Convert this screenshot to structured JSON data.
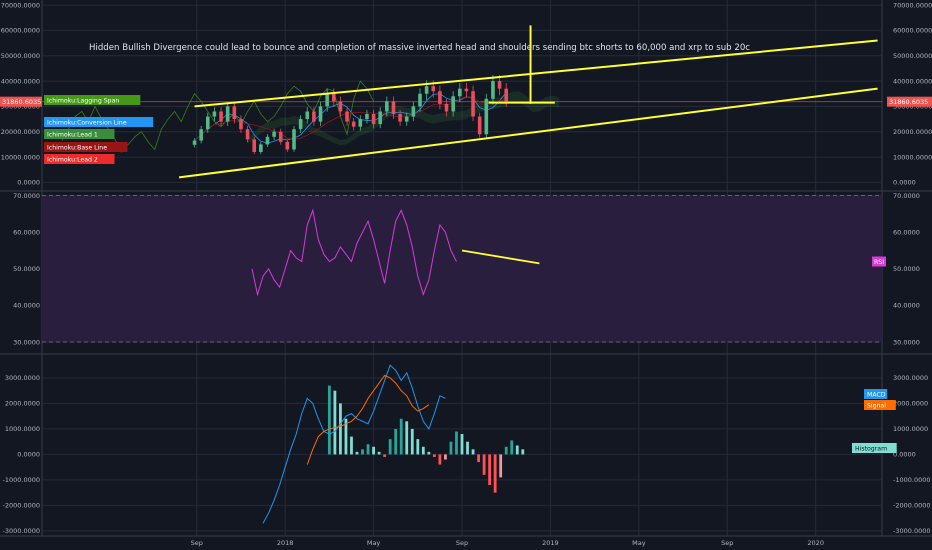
{
  "annotation": "Hidden Bullish Divergence could lead to bounce and completion of massive inverted head and shoulders sending btc shorts to 60,000 and xrp to sub 20c",
  "colors": {
    "background": "#131722",
    "grid": "#262b3a",
    "axis_text": "#b2b5be",
    "candle_up": "#53b987",
    "candle_down": "#eb4d5c",
    "trendline": "#ffff33",
    "rsi_line": "#d53bd6",
    "rsi_band": "#2a1e3e",
    "macd": "#2196f3",
    "signal": "#ff6d00",
    "hist_up": "#7fded3",
    "hist_up_weak": "#26a69a",
    "hist_down": "#ff5252",
    "hist_down_weak": "#ef9a9a",
    "ichimoku_conversion": "#2196f3",
    "ichimoku_base": "#991515",
    "ichimoku_lagging": "#459915",
    "ichimoku_lead1": "#388e3c",
    "ichimoku_lead2": "#ef2a2a",
    "price_label": "#ef5350"
  },
  "time_axis": {
    "ticks": [
      {
        "label": "Sep",
        "t": 0
      },
      {
        "label": "2018",
        "t": 4
      },
      {
        "label": "May",
        "t": 8
      },
      {
        "label": "Sep",
        "t": 12
      },
      {
        "label": "2019",
        "t": 16
      },
      {
        "label": "May",
        "t": 20
      },
      {
        "label": "Sep",
        "t": 24
      },
      {
        "label": "2020",
        "t": 28
      }
    ],
    "range": [
      -7,
      31
    ]
  },
  "chart_data": [
    {
      "type": "candlestick",
      "name": "price",
      "ylim": [
        -3000,
        72000
      ],
      "y_ticks": [
        "0.0000",
        "10000.0000",
        "20000.0000",
        "30000.0000",
        "40000.0000",
        "50000.0000",
        "60000.0000",
        "70000.0000"
      ],
      "y_tick_values": [
        0,
        10000,
        20000,
        30000,
        40000,
        50000,
        60000,
        70000
      ],
      "last_price": "31860.6035",
      "last_price_value": 31860,
      "legend": [
        {
          "label": "Ichimoku:Lagging Span",
          "color_key": "ichimoku_lagging"
        },
        {
          "label": "Ichimoku:Conversion Line",
          "color_key": "ichimoku_conversion"
        },
        {
          "label": "Ichimoku:Lead 1",
          "color_key": "ichimoku_lead1"
        },
        {
          "label": "Ichimoku:Base Line",
          "color_key": "ichimoku_base"
        },
        {
          "label": "Ichimoku:Lead 2",
          "color_key": "ichimoku_lead2"
        }
      ],
      "closes_t_start": -0.1,
      "closes_t_step": 0.3,
      "closes": [
        16500,
        21000,
        26000,
        28000,
        24000,
        30000,
        25000,
        21000,
        17000,
        12000,
        15000,
        18000,
        20000,
        16000,
        13000,
        21000,
        25000,
        28000,
        24000,
        30000,
        35000,
        32000,
        28000,
        24000,
        22000,
        25000,
        27000,
        23000,
        28000,
        32000,
        27000,
        24000,
        26000,
        30000,
        35000,
        38000,
        36000,
        31000,
        28000,
        34000,
        37000,
        36000,
        26000,
        19000,
        33000,
        40000,
        37000,
        32000
      ],
      "lagging_t_start": -6.1,
      "lagging_step": 0.3,
      "trendlines": [
        {
          "t1": -0.1,
          "y1": 30000,
          "t2": 30.8,
          "y2": 56000
        },
        {
          "t1": -0.8,
          "y1": 2000,
          "t2": 30.8,
          "y2": 37000
        },
        {
          "t1": 13.2,
          "y1": 31500,
          "t2": 16.2,
          "y2": 31500
        },
        {
          "t1": 15.1,
          "y1": 31000,
          "t2": 15.1,
          "y2": 62000
        }
      ]
    },
    {
      "type": "line",
      "name": "RSI",
      "legend": "RSI",
      "ylim": [
        27,
        71
      ],
      "y_ticks": [
        "30.0000",
        "40.0000",
        "50.0000",
        "60.0000",
        "70.0000"
      ],
      "y_tick_values": [
        30,
        40,
        50,
        60,
        70
      ],
      "bands": [
        30,
        70
      ],
      "t_start": 2.5,
      "t_step": 0.25,
      "values": [
        50,
        43,
        48,
        50,
        47,
        45,
        50,
        55,
        53,
        52,
        62,
        66,
        58,
        54,
        52,
        53,
        56,
        54,
        52,
        57,
        60,
        63,
        58,
        52,
        46,
        55,
        63,
        66,
        62,
        56,
        48,
        43,
        47,
        55,
        62,
        60,
        55,
        52
      ],
      "trendline": {
        "t1": 12.0,
        "y1": 55,
        "t2": 15.5,
        "y2": 51.5
      }
    },
    {
      "type": "line+bar",
      "name": "MACD",
      "ylim": [
        -3200,
        3900
      ],
      "y_ticks": [
        "-3000.0000",
        "-2000.0000",
        "-1000.0000",
        "0.0000",
        "1000.0000",
        "2000.0000",
        "3000.0000"
      ],
      "y_tick_values": [
        -3000,
        -2000,
        -1000,
        0,
        1000,
        2000,
        3000
      ],
      "legend": [
        {
          "label": "MACD",
          "color_key": "macd"
        },
        {
          "label": "Signal",
          "color_key": "signal"
        },
        {
          "label": "Histogram",
          "color_key": "hist_up"
        }
      ],
      "t_start": 3.0,
      "t_step": 0.25,
      "macd": [
        -2700,
        -2300,
        -1800,
        -1200,
        -500,
        200,
        800,
        1600,
        2200,
        2000,
        1400,
        900,
        800,
        900,
        1200,
        1500,
        1600,
        1400,
        1300,
        1200,
        1700,
        2300,
        2900,
        3500,
        3300,
        2900,
        3200,
        2600,
        1900,
        1300,
        1000,
        1600,
        2300,
        2200
      ],
      "signal_t_start": 5.0,
      "signal": [
        -400,
        200,
        700,
        900,
        1000,
        1050,
        1100,
        1200,
        1300,
        1500,
        1800,
        2200,
        2500,
        2800,
        3100,
        3000,
        2800,
        2500,
        2300,
        1900,
        1700,
        1800,
        1950
      ],
      "hist_t_start": 6.0,
      "histogram": [
        2700,
        2500,
        2000,
        1400,
        700,
        100,
        200,
        400,
        300,
        100,
        -100,
        600,
        1000,
        1400,
        1300,
        1000,
        600,
        300,
        100,
        -100,
        -400,
        -200,
        500,
        900,
        800,
        500,
        200,
        -300,
        -800,
        -1200,
        -1500,
        -900,
        300,
        550,
        350,
        200
      ]
    }
  ]
}
